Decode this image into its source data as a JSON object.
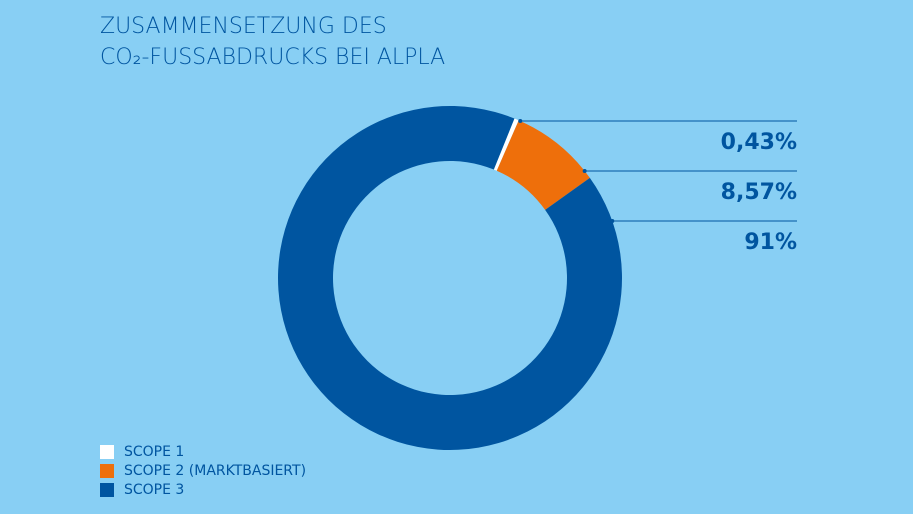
{
  "chart_data": {
    "type": "donut",
    "title": [
      "ZUSAMMENSETZUNG DES",
      "CO₂-FUSSABDRUCKS BEI ALPLA"
    ],
    "categories": [
      "SCOPE 1",
      "SCOPE 2 (MARKTBASIERT)",
      "SCOPE 3"
    ],
    "values": [
      0.43,
      8.57,
      91
    ],
    "value_labels": [
      "0,43%",
      "8,57%",
      "91%"
    ],
    "colors": [
      "#ffffff",
      "#ee6f0b",
      "#0055a0"
    ]
  }
}
